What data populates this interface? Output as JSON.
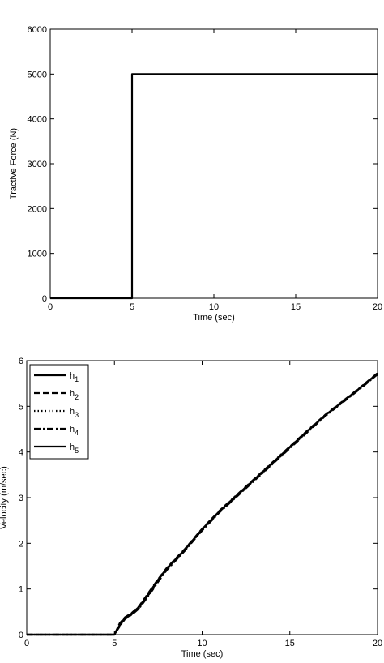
{
  "chart_data": [
    {
      "type": "line",
      "xlabel": "Time (sec)",
      "ylabel": "Tractive Force (N)",
      "xlim": [
        0,
        20
      ],
      "ylim": [
        0,
        6000
      ],
      "xticks": [
        "0",
        "5",
        "10",
        "15",
        "20"
      ],
      "yticks": [
        "0",
        "1000",
        "2000",
        "3000",
        "4000",
        "5000",
        "6000"
      ],
      "grid": false,
      "legend": "none",
      "series": [
        {
          "x": [
            0,
            5,
            5,
            20
          ],
          "y": [
            0,
            0,
            5000,
            5000
          ],
          "style": "solid"
        }
      ]
    },
    {
      "type": "line",
      "xlabel": "Time (sec)",
      "ylabel": "Velocity (m/sec)",
      "xlim": [
        0,
        20
      ],
      "ylim": [
        0,
        6
      ],
      "xticks": [
        "0",
        "5",
        "10",
        "15",
        "20"
      ],
      "yticks": [
        "0",
        "1",
        "2",
        "3",
        "4",
        "5",
        "6"
      ],
      "grid": false,
      "legend": "top-left",
      "series": [
        {
          "name": "h1",
          "label_base": "h",
          "label_sub": "1",
          "style": "solid",
          "x": [
            0,
            5,
            5.3,
            5.6,
            6,
            6.4,
            7,
            7.5,
            8,
            9,
            10,
            11,
            12,
            13,
            14,
            15,
            16,
            17,
            18,
            19,
            20
          ],
          "y": [
            0,
            0,
            0.2,
            0.35,
            0.45,
            0.6,
            0.9,
            1.2,
            1.45,
            1.85,
            2.3,
            2.7,
            3.05,
            3.4,
            3.75,
            4.1,
            4.45,
            4.8,
            5.1,
            5.4,
            5.72
          ]
        },
        {
          "name": "h2",
          "label_base": "h",
          "label_sub": "2",
          "style": "dashed",
          "x": [
            0,
            5,
            5.3,
            5.6,
            6,
            6.4,
            7,
            7.5,
            8,
            9,
            10,
            11,
            12,
            13,
            14,
            15,
            16,
            17,
            18,
            19,
            20
          ],
          "y": [
            0,
            0,
            0.25,
            0.38,
            0.48,
            0.62,
            0.95,
            1.22,
            1.47,
            1.87,
            2.32,
            2.72,
            3.07,
            3.42,
            3.77,
            4.12,
            4.47,
            4.81,
            5.11,
            5.41,
            5.73
          ]
        },
        {
          "name": "h3",
          "label_base": "h",
          "label_sub": "3",
          "style": "dotted",
          "x": [
            0,
            5,
            5.3,
            5.6,
            6,
            6.4,
            7,
            7.5,
            8,
            9,
            10,
            11,
            12,
            13,
            14,
            15,
            16,
            17,
            18,
            19,
            20
          ],
          "y": [
            0,
            0,
            0.22,
            0.36,
            0.46,
            0.58,
            0.92,
            1.18,
            1.44,
            1.84,
            2.29,
            2.69,
            3.04,
            3.39,
            3.74,
            4.09,
            4.44,
            4.79,
            5.09,
            5.39,
            5.71
          ]
        },
        {
          "name": "h4",
          "label_base": "h",
          "label_sub": "4",
          "style": "dashdot",
          "x": [
            0,
            5,
            5.3,
            5.6,
            6,
            6.4,
            7,
            7.5,
            8,
            9,
            10,
            11,
            12,
            13,
            14,
            15,
            16,
            17,
            18,
            19,
            20
          ],
          "y": [
            0,
            0,
            0.18,
            0.34,
            0.44,
            0.57,
            0.88,
            1.16,
            1.42,
            1.83,
            2.28,
            2.68,
            3.03,
            3.38,
            3.73,
            4.08,
            4.43,
            4.78,
            5.08,
            5.38,
            5.7
          ]
        },
        {
          "name": "h5",
          "label_base": "h",
          "label_sub": "5",
          "style": "solid",
          "x": [
            0,
            5,
            5.3,
            5.6,
            6,
            6.4,
            7,
            7.5,
            8,
            9,
            10,
            11,
            12,
            13,
            14,
            15,
            16,
            17,
            18,
            19,
            20
          ],
          "y": [
            0,
            0,
            0.21,
            0.37,
            0.47,
            0.61,
            0.93,
            1.21,
            1.46,
            1.86,
            2.31,
            2.71,
            3.06,
            3.41,
            3.76,
            4.11,
            4.46,
            4.8,
            5.1,
            5.4,
            5.72
          ]
        }
      ]
    }
  ]
}
